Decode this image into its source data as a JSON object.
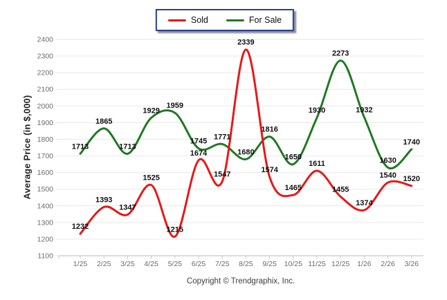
{
  "footer": {
    "copyright": "Copyright © Trendgraphix, Inc."
  },
  "chart_data": {
    "type": "line",
    "title": "",
    "xlabel": "",
    "ylabel": "Average Price (in $,000)",
    "categories": [
      "1/25",
      "2/25",
      "3/25",
      "4/25",
      "5/25",
      "6/25",
      "7/25",
      "8/25",
      "9/25",
      "10/25",
      "11/25",
      "12/25",
      "1/26",
      "2/26",
      "3/26"
    ],
    "series": [
      {
        "name": "Sold",
        "color": "#e81717",
        "values": [
          1232,
          1393,
          1347,
          1525,
          1215,
          1674,
          1547,
          2339,
          1574,
          1465,
          1611,
          1455,
          1374,
          1540,
          1520
        ]
      },
      {
        "name": "For Sale",
        "color": "#217821",
        "values": [
          1713,
          1865,
          1713,
          1929,
          1959,
          1745,
          1771,
          1680,
          1816,
          1650,
          1930,
          2273,
          1932,
          1630,
          1740
        ]
      }
    ],
    "ylim": [
      1100,
      2400
    ],
    "ytick_step": 100,
    "grid": "horizontal",
    "smooth": true,
    "point_labels": "shown",
    "legend_position": "top-center",
    "colors": {
      "grid_line": "#ebebeb",
      "axis_line": "#c9c9c9",
      "tick_label": "#6b6b6b",
      "data_label": "#111111",
      "legend_border": "#27408b"
    }
  }
}
